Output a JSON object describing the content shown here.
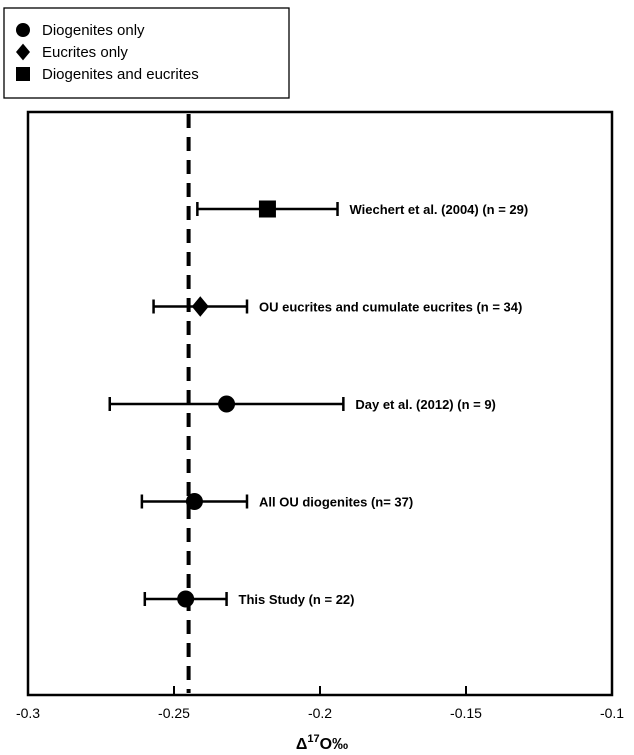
{
  "chart_data": {
    "type": "scatter",
    "xlabel_parts": {
      "delta": "Δ",
      "sup": "17",
      "rest": "O‰"
    },
    "xlim": [
      -0.3,
      -0.1
    ],
    "x_ticks": [
      -0.3,
      -0.25,
      -0.2,
      -0.15,
      -0.1
    ],
    "x_tick_labels": [
      "-0.3",
      "-0.25",
      "-0.2",
      "-0.15",
      "-0.1"
    ],
    "reference_line": {
      "x": -0.245,
      "style": "dashed"
    },
    "legend": [
      {
        "marker": "circle",
        "label": "Diogenites only"
      },
      {
        "marker": "diamond",
        "label": "Eucrites only"
      },
      {
        "marker": "square",
        "label": "Diogenites and eucrites"
      }
    ],
    "points": [
      {
        "label": "Wiechert et al. (2004) (n = 29)",
        "marker": "square",
        "x": -0.218,
        "xerr_low": -0.242,
        "xerr_high": -0.194
      },
      {
        "label": "OU eucrites and cumulate eucrites (n = 34)",
        "marker": "diamond",
        "x": -0.241,
        "xerr_low": -0.257,
        "xerr_high": -0.225
      },
      {
        "label": "Day et al. (2012) (n = 9)",
        "marker": "circle",
        "x": -0.232,
        "xerr_low": -0.272,
        "xerr_high": -0.192
      },
      {
        "label": "All OU diogenites (n= 37)",
        "marker": "circle",
        "x": -0.243,
        "xerr_low": -0.261,
        "xerr_high": -0.225
      },
      {
        "label": "This Study (n = 22)",
        "marker": "circle",
        "x": -0.246,
        "xerr_low": -0.26,
        "xerr_high": -0.232
      }
    ],
    "colors": {
      "marker": "#000000",
      "line": "#000000"
    }
  }
}
